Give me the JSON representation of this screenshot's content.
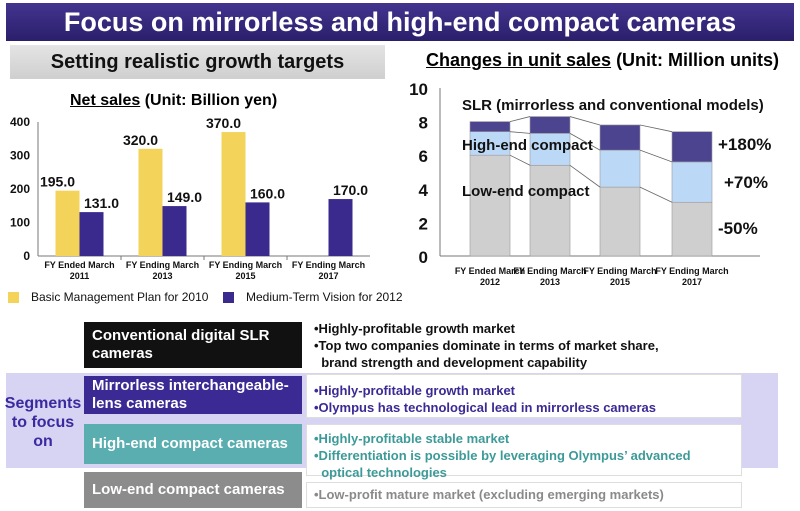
{
  "title": "Focus on mirrorless and high-end compact cameras",
  "left_subhead": "Setting realistic growth targets",
  "right_title": {
    "underlined": "Changes in unit sales",
    "unit": "(Unit: Million units)"
  },
  "net_sales_title": {
    "underlined": "Net sales",
    "unit": "(Unit: Billion yen)"
  },
  "chart_data": [
    {
      "type": "bar",
      "title": "Net sales",
      "unit": "Billion yen",
      "categories": [
        [
          "FY Ended March",
          "2011"
        ],
        [
          "FY Ending March",
          "2013"
        ],
        [
          "FY Ending March",
          "2015"
        ],
        [
          "FY Ending March",
          "2017"
        ]
      ],
      "series": [
        {
          "name": "Basic Management Plan for 2010",
          "color": "#f3d35a",
          "values": [
            195.0,
            320.0,
            370.0,
            null
          ],
          "labels": [
            "195.0",
            "320.0",
            "370.0",
            ""
          ]
        },
        {
          "name": "Medium-Term Vision for 2012",
          "color": "#3a2a8e",
          "values": [
            131.0,
            149.0,
            160.0,
            170.0
          ],
          "labels": [
            "131.0",
            "149.0",
            "160.0",
            "170.0"
          ]
        }
      ],
      "ylim": [
        0,
        400
      ],
      "yticks": [
        0,
        100,
        200,
        300,
        400
      ],
      "legend": "bottom",
      "grid": false
    },
    {
      "type": "bar",
      "stacked": true,
      "title": "Changes in unit sales",
      "unit": "Million units",
      "categories": [
        [
          "FY Ended March",
          "2012"
        ],
        [
          "FY Ending March",
          "2013"
        ],
        [
          "FY Ending March",
          "2015"
        ],
        [
          "FY Ending March",
          "2017"
        ]
      ],
      "series": [
        {
          "name": "Low-end compact",
          "color": "#cfcfcf",
          "values": [
            6.0,
            5.4,
            4.1,
            3.2
          ]
        },
        {
          "name": "High-end compact",
          "color": "#bcd8f7",
          "values": [
            1.4,
            1.9,
            2.2,
            2.4
          ]
        },
        {
          "name": "SLR (mirrorless and conventional models)",
          "color": "#4d4490",
          "values": [
            0.6,
            1.0,
            1.5,
            1.8
          ]
        }
      ],
      "ylim": [
        0,
        10
      ],
      "yticks": [
        0,
        2,
        4,
        6,
        8,
        10
      ],
      "annotations": [
        "+180%",
        "+70%",
        "-50%"
      ],
      "grid": false
    }
  ],
  "segments_label": "Segments to focus on",
  "segments": [
    {
      "name": "Conventional digital SLR cameras",
      "bg": "#111111",
      "fg": "#ffffff",
      "desc_color": "#111111",
      "desc": [
        "•Highly-profitable growth market",
        "•Top two companies dominate in terms of market share,",
        "  brand strength and development capability"
      ]
    },
    {
      "name": "Mirrorless interchangeable-lens cameras",
      "bg": "#3b2a94",
      "fg": "#ffffff",
      "desc_color": "#3b2a94",
      "desc": [
        "•Highly-profitable growth market",
        "•Olympus has technological lead in mirrorless cameras"
      ]
    },
    {
      "name": "High-end compact cameras",
      "bg": "#5aaeb0",
      "fg": "#ffffff",
      "desc_color": "#3c9a98",
      "desc": [
        "•Highly-profitable stable market",
        "•Differentiation is possible by leveraging Olympus’ advanced",
        "  optical technologies"
      ]
    },
    {
      "name": "Low-end compact cameras",
      "bg": "#8c8c8c",
      "fg": "#ffffff",
      "desc_color": "#8a8a8a",
      "desc": [
        "•Low-profit mature market (excluding emerging markets)"
      ]
    }
  ]
}
